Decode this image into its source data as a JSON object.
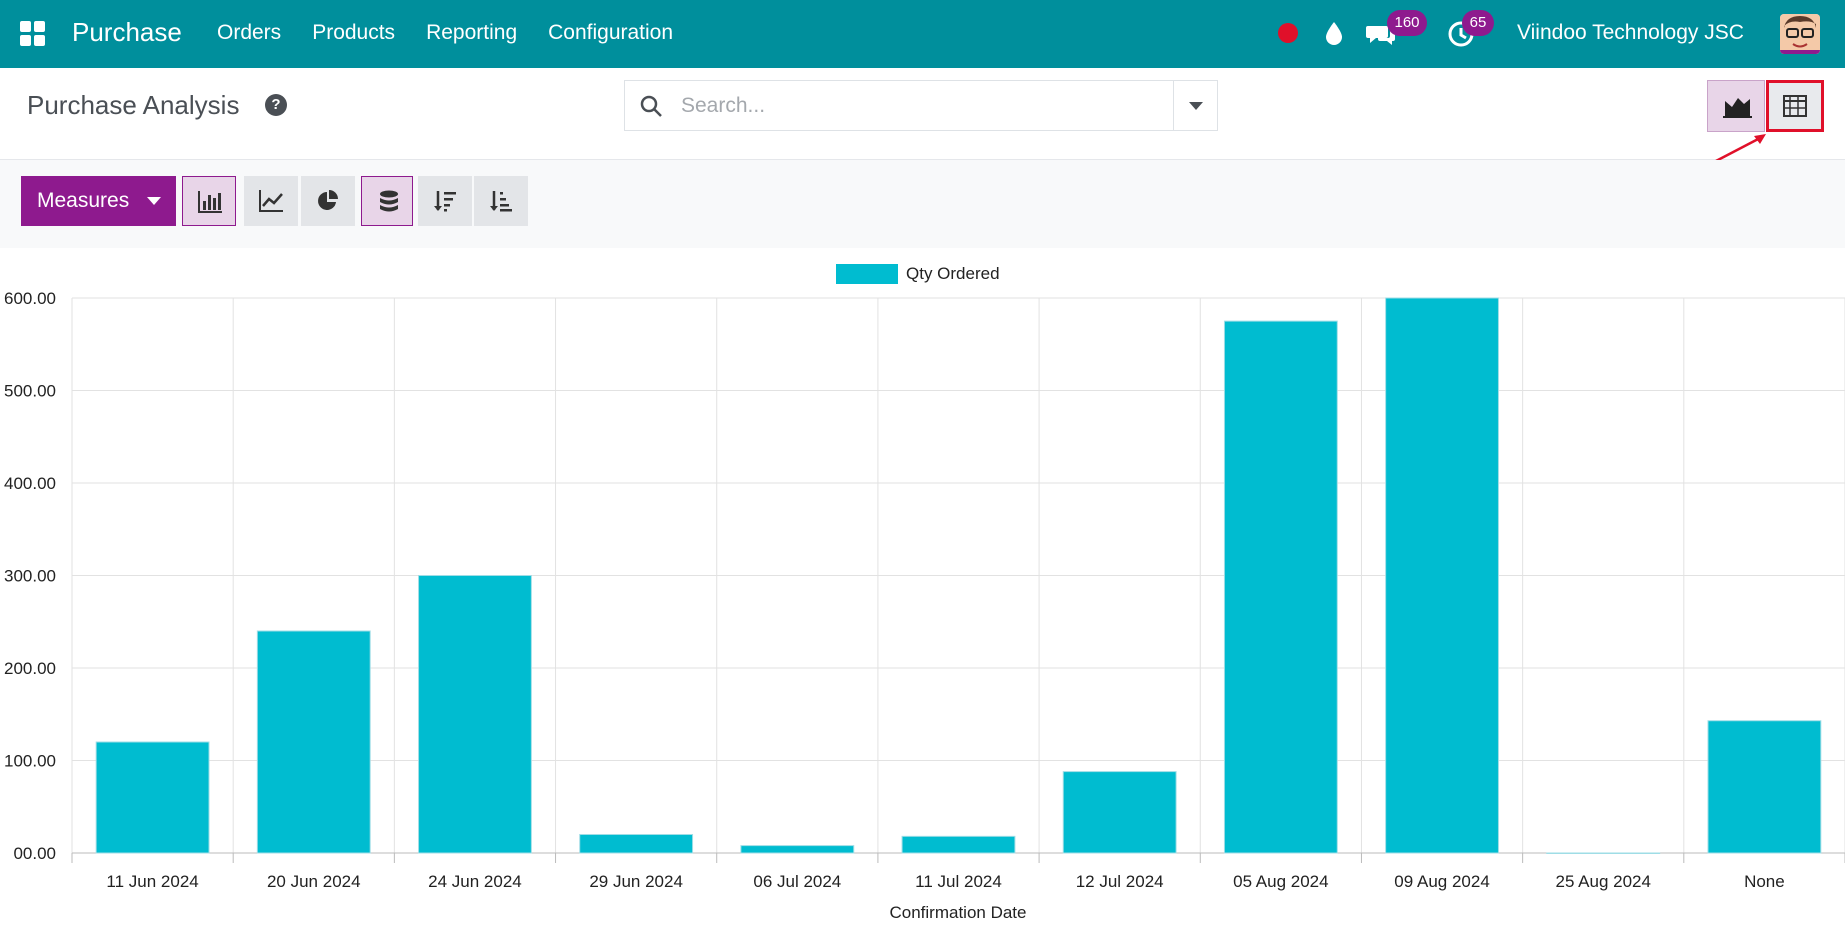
{
  "navbar": {
    "app_name": "Purchase",
    "menu": [
      "Orders",
      "Products",
      "Reporting",
      "Configuration"
    ],
    "messages_badge": "160",
    "activities_badge": "65",
    "company": "Viindoo Technology JSC",
    "icons": [
      "apps-icon",
      "record-dot-icon",
      "drop-icon",
      "chat-icon",
      "clock-icon",
      "avatar"
    ],
    "colors": {
      "bar": "#008f9c",
      "badge": "#8e1a8e",
      "record": "#e0102a"
    }
  },
  "control": {
    "title": "Purchase Analysis",
    "search_placeholder": "Search...",
    "views": [
      "graph-view-icon",
      "pivot-view-icon"
    ]
  },
  "toolbar": {
    "measures_label": "Measures",
    "buttons": [
      "bar-chart-icon",
      "line-chart-icon",
      "pie-chart-icon",
      "stacked-icon",
      "sort-descending-icon",
      "sort-ascending-icon"
    ]
  },
  "chart_data": {
    "type": "bar",
    "categories": [
      "11 Jun 2024",
      "20 Jun 2024",
      "24 Jun 2024",
      "29 Jun 2024",
      "06 Jul 2024",
      "11 Jul 2024",
      "12 Jul 2024",
      "05 Aug 2024",
      "09 Aug 2024",
      "25 Aug 2024",
      "None"
    ],
    "series": [
      {
        "name": "Qty Ordered",
        "values": [
          120,
          240,
          300,
          20,
          8,
          18,
          88,
          575,
          600,
          0,
          143
        ]
      }
    ],
    "xlabel": "Confirmation Date",
    "ylabel": "",
    "ylim": [
      0,
      600
    ],
    "yticks": [
      "00.00",
      "100.00",
      "200.00",
      "300.00",
      "400.00",
      "500.00",
      "600.00"
    ],
    "grid": true,
    "legend": "top-center",
    "color": "#00bcd0"
  }
}
